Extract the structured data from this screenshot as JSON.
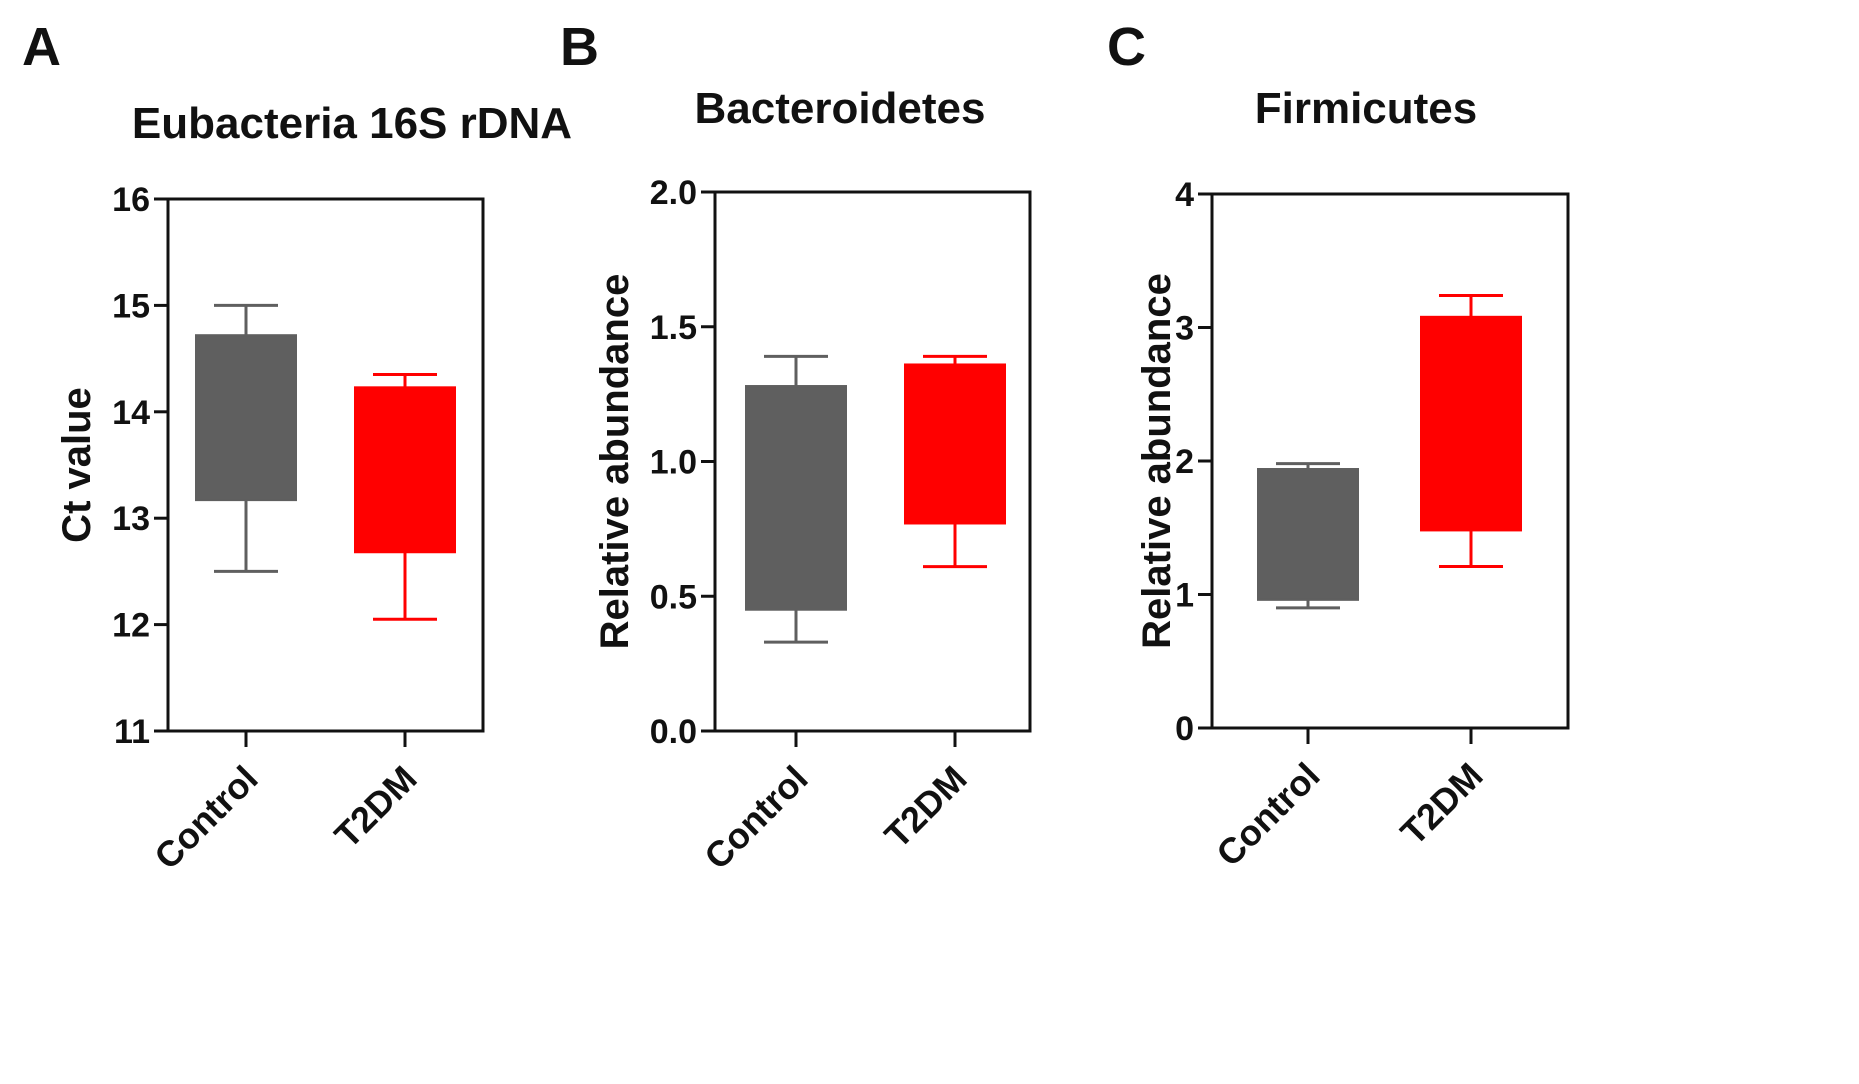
{
  "colors": {
    "axis": "#111111",
    "control": "#5f5f5f",
    "t2dm": "#ff0000"
  },
  "chart_data": [
    {
      "type": "boxplot",
      "panel_label": "A",
      "title": "Eubacteria 16S rDNA",
      "xlabel": "",
      "ylabel": "Ct value",
      "ylim": [
        11,
        16
      ],
      "yticks": [
        11,
        12,
        13,
        14,
        15,
        16
      ],
      "ytick_labels": [
        "11",
        "12",
        "13",
        "14",
        "15",
        "16"
      ],
      "categories": [
        "Control",
        "T2DM"
      ],
      "series": [
        {
          "name": "Control",
          "color": "#5f5f5f",
          "whisker_low": 12.5,
          "q1": 13.17,
          "q3": 14.72,
          "whisker_high": 15.0
        },
        {
          "name": "T2DM",
          "color": "#ff0000",
          "whisker_low": 12.05,
          "q1": 12.68,
          "q3": 14.23,
          "whisker_high": 14.35
        }
      ]
    },
    {
      "type": "boxplot",
      "panel_label": "B",
      "title": "Bacteroidetes",
      "xlabel": "",
      "ylabel": "Relative abundance",
      "ylim": [
        0,
        2
      ],
      "yticks": [
        0,
        0.5,
        1,
        1.5,
        2
      ],
      "ytick_labels": [
        "0.0",
        "0.5",
        "1.0",
        "1.5",
        "2.0"
      ],
      "categories": [
        "Control",
        "T2DM"
      ],
      "series": [
        {
          "name": "Control",
          "color": "#5f5f5f",
          "whisker_low": 0.33,
          "q1": 0.45,
          "q3": 1.28,
          "whisker_high": 1.39
        },
        {
          "name": "T2DM",
          "color": "#ff0000",
          "whisker_low": 0.61,
          "q1": 0.77,
          "q3": 1.36,
          "whisker_high": 1.39
        }
      ]
    },
    {
      "type": "boxplot",
      "panel_label": "C",
      "title": "Firmicutes",
      "xlabel": "",
      "ylabel": "Relative abundance",
      "ylim": [
        0,
        4
      ],
      "yticks": [
        0,
        1,
        2,
        3,
        4
      ],
      "ytick_labels": [
        "0",
        "1",
        "2",
        "3",
        "4"
      ],
      "categories": [
        "Control",
        "T2DM"
      ],
      "series": [
        {
          "name": "Control",
          "color": "#5f5f5f",
          "whisker_low": 0.9,
          "q1": 0.96,
          "q3": 1.94,
          "whisker_high": 1.98
        },
        {
          "name": "T2DM",
          "color": "#ff0000",
          "whisker_low": 1.21,
          "q1": 1.48,
          "q3": 3.08,
          "whisker_high": 3.24
        }
      ]
    }
  ]
}
